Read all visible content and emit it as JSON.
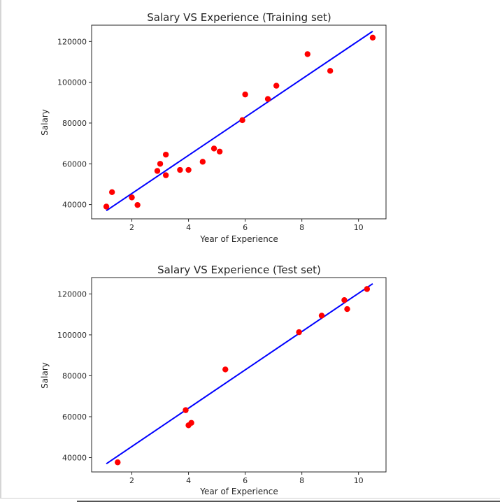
{
  "chart_data": [
    {
      "type": "scatter",
      "title": "Salary VS Experience (Training set)",
      "xlabel": "Year of Experience",
      "ylabel": "Salary",
      "xlim": [
        0.58,
        10.97
      ],
      "ylim": [
        33000,
        128000
      ],
      "xticks": [
        2,
        4,
        6,
        8,
        10
      ],
      "xtick_labels": [
        "2",
        "4",
        "6",
        "8",
        "10"
      ],
      "yticks": [
        40000,
        60000,
        80000,
        100000,
        120000
      ],
      "ytick_labels": [
        "40000",
        "60000",
        "80000",
        "100000",
        "120000"
      ],
      "grid": false,
      "colors": {
        "points": "#ff0000",
        "line": "#0000ff",
        "axes": "#262626"
      },
      "series": [
        {
          "kind": "points",
          "x": [
            1.1,
            1.3,
            2.0,
            2.2,
            2.9,
            3.0,
            3.2,
            3.2,
            3.7,
            4.0,
            4.5,
            4.9,
            5.1,
            5.9,
            6.0,
            6.8,
            7.1,
            8.2,
            9.0,
            10.5
          ],
          "y": [
            39000,
            46100,
            43500,
            39800,
            56500,
            60000,
            64500,
            54400,
            57000,
            57000,
            61000,
            67500,
            66000,
            81400,
            94000,
            91800,
            98300,
            113800,
            105600,
            121900
          ]
        },
        {
          "kind": "line",
          "x": [
            1.1,
            10.5
          ],
          "y": [
            37000,
            125000
          ]
        }
      ]
    },
    {
      "type": "scatter",
      "title": "Salary VS Experience (Test set)",
      "xlabel": "Year of Experience",
      "ylabel": "Salary",
      "xlim": [
        0.58,
        10.97
      ],
      "ylim": [
        33000,
        128000
      ],
      "xticks": [
        2,
        4,
        6,
        8,
        10
      ],
      "xtick_labels": [
        "2",
        "4",
        "6",
        "8",
        "10"
      ],
      "yticks": [
        40000,
        60000,
        80000,
        100000,
        120000
      ],
      "ytick_labels": [
        "40000",
        "60000",
        "80000",
        "100000",
        "120000"
      ],
      "grid": false,
      "colors": {
        "points": "#ff0000",
        "line": "#0000ff",
        "axes": "#262626"
      },
      "series": [
        {
          "kind": "points",
          "x": [
            1.5,
            3.9,
            4.0,
            4.1,
            5.3,
            7.9,
            8.7,
            9.5,
            9.6,
            10.3
          ],
          "y": [
            37700,
            63200,
            55800,
            57000,
            83100,
            101300,
            109400,
            117000,
            112600,
            122400
          ]
        },
        {
          "kind": "line",
          "x": [
            1.1,
            10.5
          ],
          "y": [
            37000,
            125000
          ]
        }
      ]
    }
  ]
}
